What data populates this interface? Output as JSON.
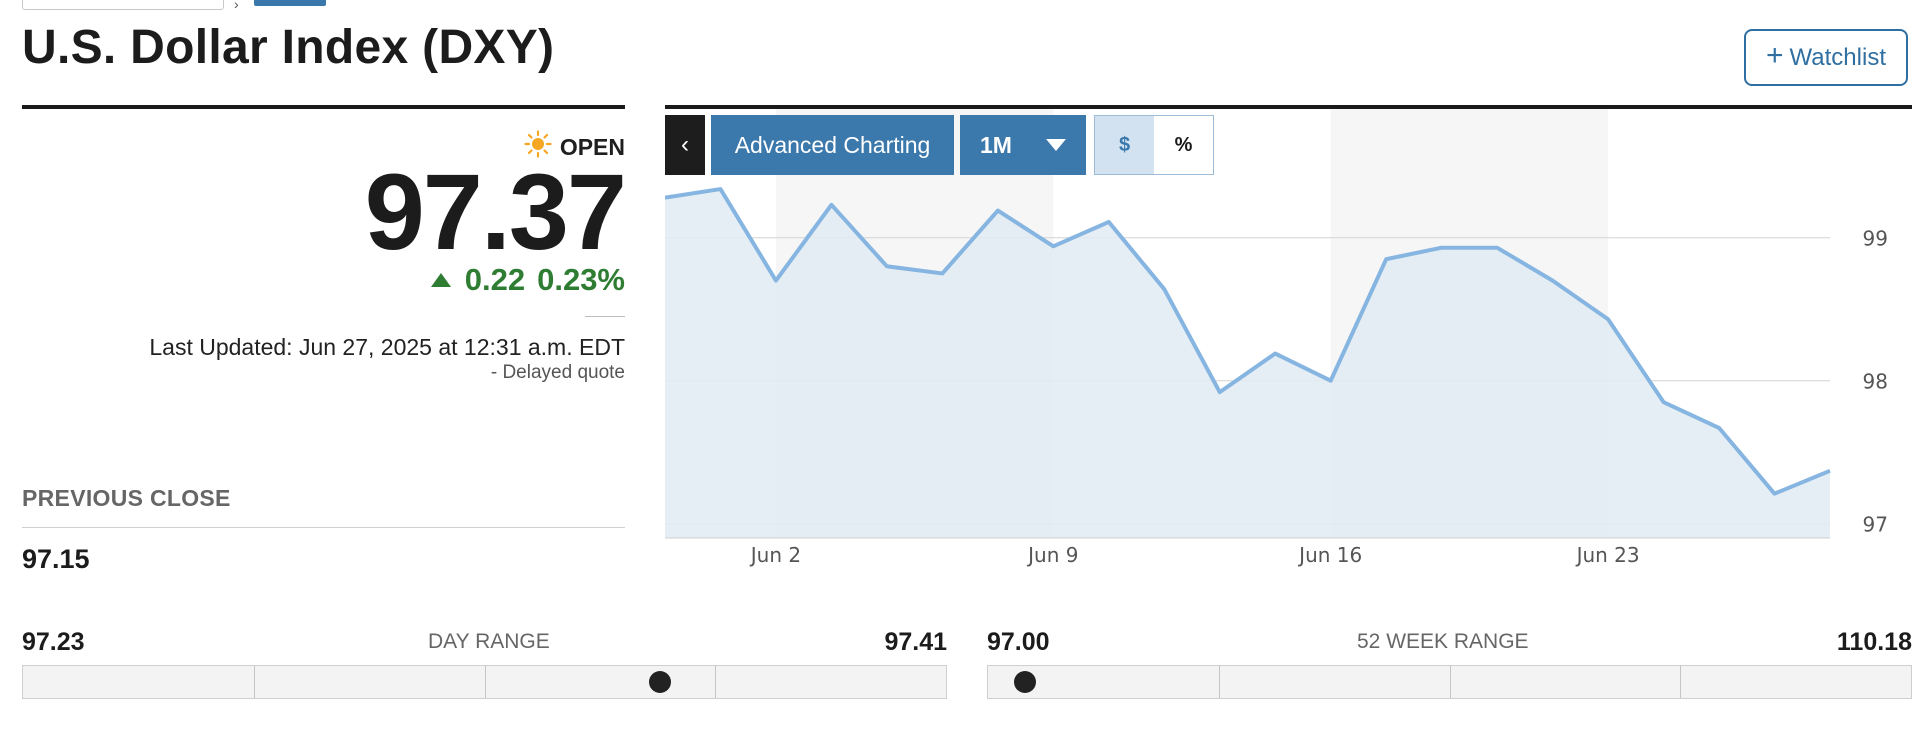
{
  "header": {
    "title": "U.S. Dollar Index (DXY)",
    "watchlist_label": "Watchlist"
  },
  "quote": {
    "status": "OPEN",
    "price": "97.37",
    "change": "0.22",
    "change_percent": "0.23%",
    "last_updated": "Last Updated: Jun 27, 2025 at 12:31 a.m. EDT",
    "delayed": "-  Delayed quote",
    "previous_close_label": "PREVIOUS CLOSE",
    "previous_close": "97.15"
  },
  "colors": {
    "positive": "#2e7d32",
    "accent": "#3b78ab",
    "line": "#85b5e0",
    "area": "#e1ebf3"
  },
  "toolbar": {
    "collapse_icon": "chevron-left-icon",
    "advanced_label": "Advanced Charting",
    "range_label": "1M",
    "dollar_label": "$",
    "percent_label": "%"
  },
  "chart_data": {
    "type": "area",
    "x": [
      "May 29",
      "May 30",
      "Jun 2",
      "Jun 3",
      "Jun 4",
      "Jun 5",
      "Jun 6",
      "Jun 9",
      "Jun 10",
      "Jun 11",
      "Jun 12",
      "Jun 13",
      "Jun 16",
      "Jun 17",
      "Jun 18",
      "Jun 19",
      "Jun 20",
      "Jun 23",
      "Jun 24",
      "Jun 25",
      "Jun 26",
      "Jun 27"
    ],
    "values": [
      99.28,
      99.34,
      98.7,
      99.23,
      98.8,
      98.75,
      99.19,
      98.94,
      99.11,
      98.64,
      97.92,
      98.19,
      98.0,
      98.85,
      98.93,
      98.93,
      98.7,
      98.43,
      97.85,
      97.67,
      97.21,
      97.37
    ],
    "x_tick_labels": [
      "Jun 2",
      "Jun 9",
      "Jun 16",
      "Jun 23"
    ],
    "y_tick_labels": [
      "99",
      "98",
      "97"
    ],
    "ylim": [
      96.9,
      99.9
    ],
    "grid": "horizontal",
    "shaded_weeks": [
      "Jun 2",
      "Jun 16"
    ]
  },
  "day_range": {
    "label": "DAY RANGE",
    "low": "97.23",
    "high": "97.41",
    "current_fraction": 0.69
  },
  "week52_range": {
    "label": "52 WEEK RANGE",
    "low": "97.00",
    "high": "110.18",
    "current_fraction": 0.04
  }
}
